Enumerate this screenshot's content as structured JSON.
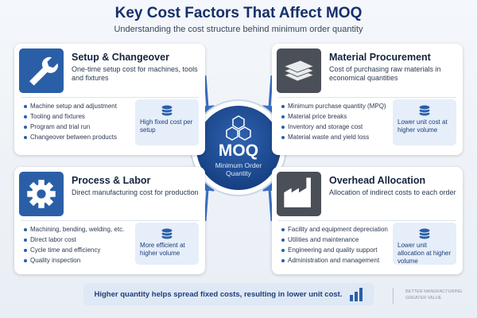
{
  "title": "Key Cost Factors That Affect MOQ",
  "subtitle": "Understanding the cost structure behind minimum order quantity",
  "center": {
    "label": "MOQ",
    "sublabel": "Minimum Order Quantity"
  },
  "cards": [
    {
      "title": "Setup & Changeover",
      "subtitle": "One-time setup cost for machines, tools and fixtures",
      "bullets": [
        "Machine setup and adjustment",
        "Tooling and fixtures",
        "Program and trial run",
        "Changeover between products"
      ],
      "note": "High fixed cost per setup"
    },
    {
      "title": "Material Procurement",
      "subtitle": "Cost of purchasing raw materials in economical quantities",
      "bullets": [
        "Minimum purchase quantity (MPQ)",
        "Material price breaks",
        "Inventory and storage cost",
        "Material waste and yield loss"
      ],
      "note": "Lower unit cost at higher volume"
    },
    {
      "title": "Process & Labor",
      "subtitle": "Direct manufacturing cost for production",
      "bullets": [
        "Machining, bending, welding, etc.",
        "Direct labor cost",
        "Cycle time and efficiency",
        "Quality inspection"
      ],
      "note": "More efficient at higher volume"
    },
    {
      "title": "Overhead Allocation",
      "subtitle": "Allocation of indirect costs to each order",
      "bullets": [
        "Facility and equipment depreciation",
        "Utilities and maintenance",
        "Engineering and quality support",
        "Administration and management"
      ],
      "note": "Lower unit allocation at higher volume"
    }
  ],
  "footer": "Higher quantity helps spread fixed costs, resulting in lower unit cost.",
  "brand": [
    "BETTER MANUFACTURING",
    "GREATER VALUE"
  ]
}
